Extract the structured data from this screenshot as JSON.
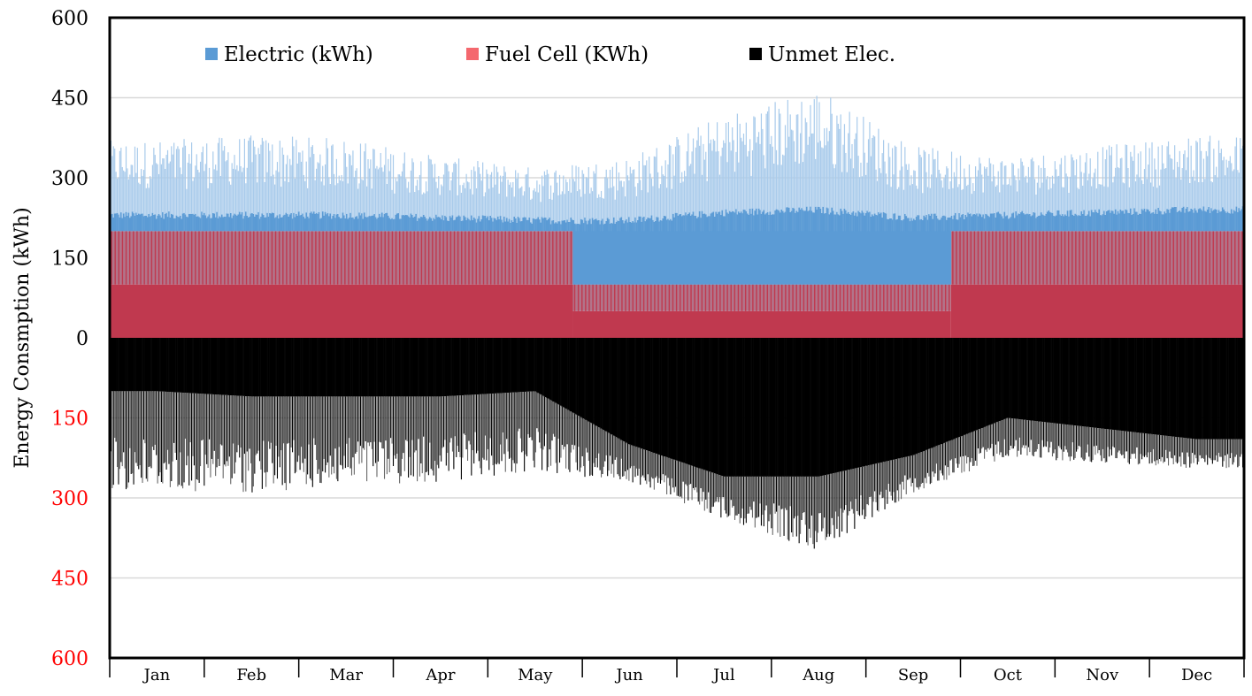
{
  "chart_data": {
    "type": "area",
    "ylabel": "Energy Consmption (kWh)",
    "ylim": [
      -600,
      600
    ],
    "y_ticks": [
      {
        "value": 600,
        "label": "600",
        "color": "#000000"
      },
      {
        "value": 450,
        "label": "450",
        "color": "#000000"
      },
      {
        "value": 300,
        "label": "300",
        "color": "#000000"
      },
      {
        "value": 150,
        "label": "150",
        "color": "#000000"
      },
      {
        "value": 0,
        "label": "0",
        "color": "#000000"
      },
      {
        "value": -150,
        "label": "150",
        "color": "#ff0000"
      },
      {
        "value": -300,
        "label": "300",
        "color": "#ff0000"
      },
      {
        "value": -450,
        "label": "450",
        "color": "#ff0000"
      },
      {
        "value": -600,
        "label": "600",
        "color": "#ff0000"
      }
    ],
    "months": [
      "Jan",
      "Feb",
      "Mar",
      "Apr",
      "May",
      "Jun",
      "Jul",
      "Aug",
      "Sep",
      "Oct",
      "Nov",
      "Dec"
    ],
    "legend": [
      {
        "key": "electric",
        "label": "Electric (kWh)",
        "color": "#5b9bd5"
      },
      {
        "key": "fuel_cell",
        "label": "Fuel Cell (KWh)",
        "color": "#f4686e"
      },
      {
        "key": "unmet",
        "label": "Unmet Elec.",
        "color": "#000000"
      }
    ],
    "colors": {
      "electric": "#5b9bd5",
      "electric_light": "#a9cbeb",
      "fuel_base": "#c0394f",
      "fuel_band": "#b2748a",
      "unmet": "#000000",
      "unmet_light": "#666666",
      "grid": "#d9d9d9"
    },
    "series": [
      {
        "name": "Fuel Cell (KWh)",
        "segments": [
          {
            "from_month": 0,
            "to_month": 4.9,
            "base": 100,
            "oscillates_to": 200
          },
          {
            "from_month": 4.9,
            "to_month": 8.9,
            "base": 50,
            "oscillates_to": 100
          },
          {
            "from_month": 8.9,
            "to_month": 12,
            "base": 100,
            "oscillates_to": 200
          }
        ]
      },
      {
        "name": "Electric (kWh)",
        "monthly_base": [
          230,
          230,
          230,
          225,
          220,
          220,
          235,
          240,
          225,
          230,
          235,
          240
        ],
        "monthly_peak": [
          370,
          380,
          375,
          340,
          320,
          340,
          420,
          470,
          360,
          340,
          360,
          380
        ]
      },
      {
        "name": "Unmet Elec.",
        "monthly_min_depth": [
          -100,
          -110,
          -110,
          -110,
          -100,
          -200,
          -260,
          -260,
          -220,
          -150,
          -170,
          -190
        ],
        "monthly_max_depth": [
          -290,
          -290,
          -280,
          -270,
          -250,
          -270,
          -340,
          -400,
          -290,
          -225,
          -235,
          -245
        ]
      }
    ]
  }
}
